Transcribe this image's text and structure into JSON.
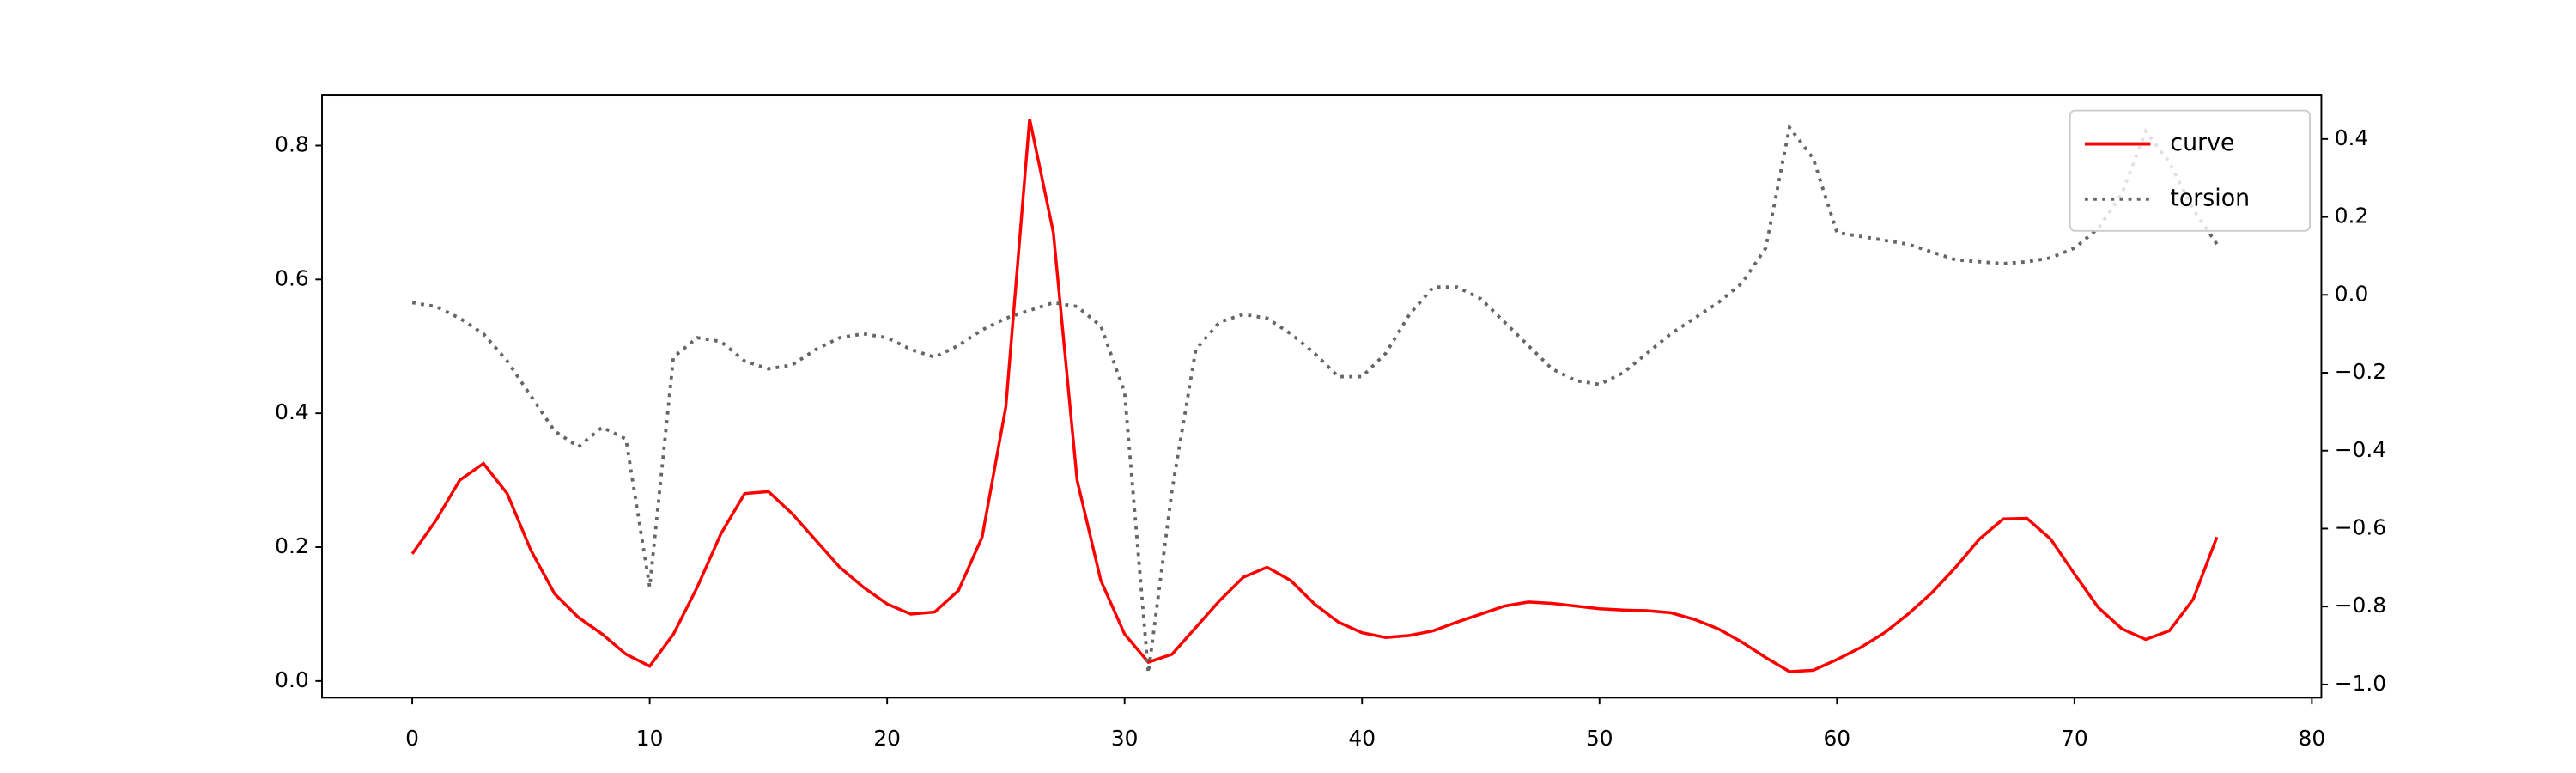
{
  "chart_data": {
    "type": "line",
    "x": [
      0,
      1,
      2,
      3,
      4,
      5,
      6,
      7,
      8,
      9,
      10,
      11,
      12,
      13,
      14,
      15,
      16,
      17,
      18,
      19,
      20,
      21,
      22,
      23,
      24,
      25,
      26,
      27,
      28,
      29,
      30,
      31,
      32,
      33,
      34,
      35,
      36,
      37,
      38,
      39,
      40,
      41,
      42,
      43,
      44,
      45,
      46,
      47,
      48,
      49,
      50,
      51,
      52,
      53,
      54,
      55,
      56,
      57,
      58,
      59,
      60,
      61,
      62,
      63,
      64,
      65,
      66,
      67,
      68,
      69,
      70,
      71,
      72,
      73,
      74,
      75,
      76
    ],
    "series": [
      {
        "name": "curve",
        "color": "#ff0000",
        "style": "solid",
        "values": [
          0.19,
          0.24,
          0.3,
          0.325,
          0.28,
          0.195,
          0.13,
          0.095,
          0.07,
          0.04,
          0.022,
          0.07,
          0.14,
          0.22,
          0.28,
          0.283,
          0.25,
          0.21,
          0.17,
          0.14,
          0.115,
          0.1,
          0.103,
          0.135,
          0.215,
          0.41,
          0.84,
          0.67,
          0.3,
          0.15,
          0.07,
          0.028,
          0.04,
          0.08,
          0.12,
          0.155,
          0.17,
          0.15,
          0.115,
          0.088,
          0.072,
          0.065,
          0.068,
          0.075,
          0.088,
          0.1,
          0.112,
          0.118,
          0.116,
          0.112,
          0.108,
          0.106,
          0.105,
          0.102,
          0.092,
          0.078,
          0.058,
          0.035,
          0.014,
          0.016,
          0.032,
          0.05,
          0.072,
          0.1,
          0.132,
          0.17,
          0.212,
          0.242,
          0.243,
          0.212,
          0.16,
          0.11,
          0.078,
          0.062,
          0.075,
          0.122,
          0.215
        ]
      },
      {
        "name": "torsion",
        "color": "#666666",
        "style": "dotted",
        "axis": "y2",
        "values": [
          -0.02,
          -0.03,
          -0.06,
          -0.1,
          -0.17,
          -0.26,
          -0.35,
          -0.39,
          -0.34,
          -0.37,
          -0.75,
          -0.16,
          -0.11,
          -0.12,
          -0.17,
          -0.19,
          -0.18,
          -0.14,
          -0.11,
          -0.1,
          -0.11,
          -0.14,
          -0.16,
          -0.13,
          -0.09,
          -0.06,
          -0.04,
          -0.02,
          -0.03,
          -0.08,
          -0.25,
          -0.97,
          -0.5,
          -0.14,
          -0.07,
          -0.05,
          -0.06,
          -0.1,
          -0.15,
          -0.21,
          -0.21,
          -0.15,
          -0.05,
          0.02,
          0.02,
          -0.01,
          -0.07,
          -0.13,
          -0.19,
          -0.22,
          -0.23,
          -0.2,
          -0.15,
          -0.1,
          -0.06,
          -0.02,
          0.03,
          0.12,
          0.43,
          0.35,
          0.16,
          0.15,
          0.14,
          0.13,
          0.11,
          0.09,
          0.085,
          0.08,
          0.085,
          0.095,
          0.12,
          0.17,
          0.26,
          0.42,
          0.34,
          0.22,
          0.13
        ]
      }
    ],
    "xlim": [
      -3.8,
      80.4
    ],
    "xticks": [
      0,
      10,
      20,
      30,
      40,
      50,
      60,
      70,
      80
    ],
    "ylim": [
      -0.025,
      0.875
    ],
    "yticks": [
      {
        "value": 0,
        "label": "0.0"
      },
      0.2,
      0.4,
      0.6,
      0.8
    ],
    "y2lim": [
      -1.034,
      0.512
    ],
    "y2ticks": [
      {
        "value": -1.0,
        "label": "−1.0"
      },
      {
        "value": -0.8,
        "label": "−0.8"
      },
      {
        "value": -0.6,
        "label": "−0.6"
      },
      {
        "value": -0.4,
        "label": "−0.4"
      },
      {
        "value": -0.2,
        "label": "−0.2"
      },
      {
        "value": 0,
        "label": "0.0"
      },
      0.2,
      0.4
    ],
    "legend": "upper right",
    "grid": false
  }
}
